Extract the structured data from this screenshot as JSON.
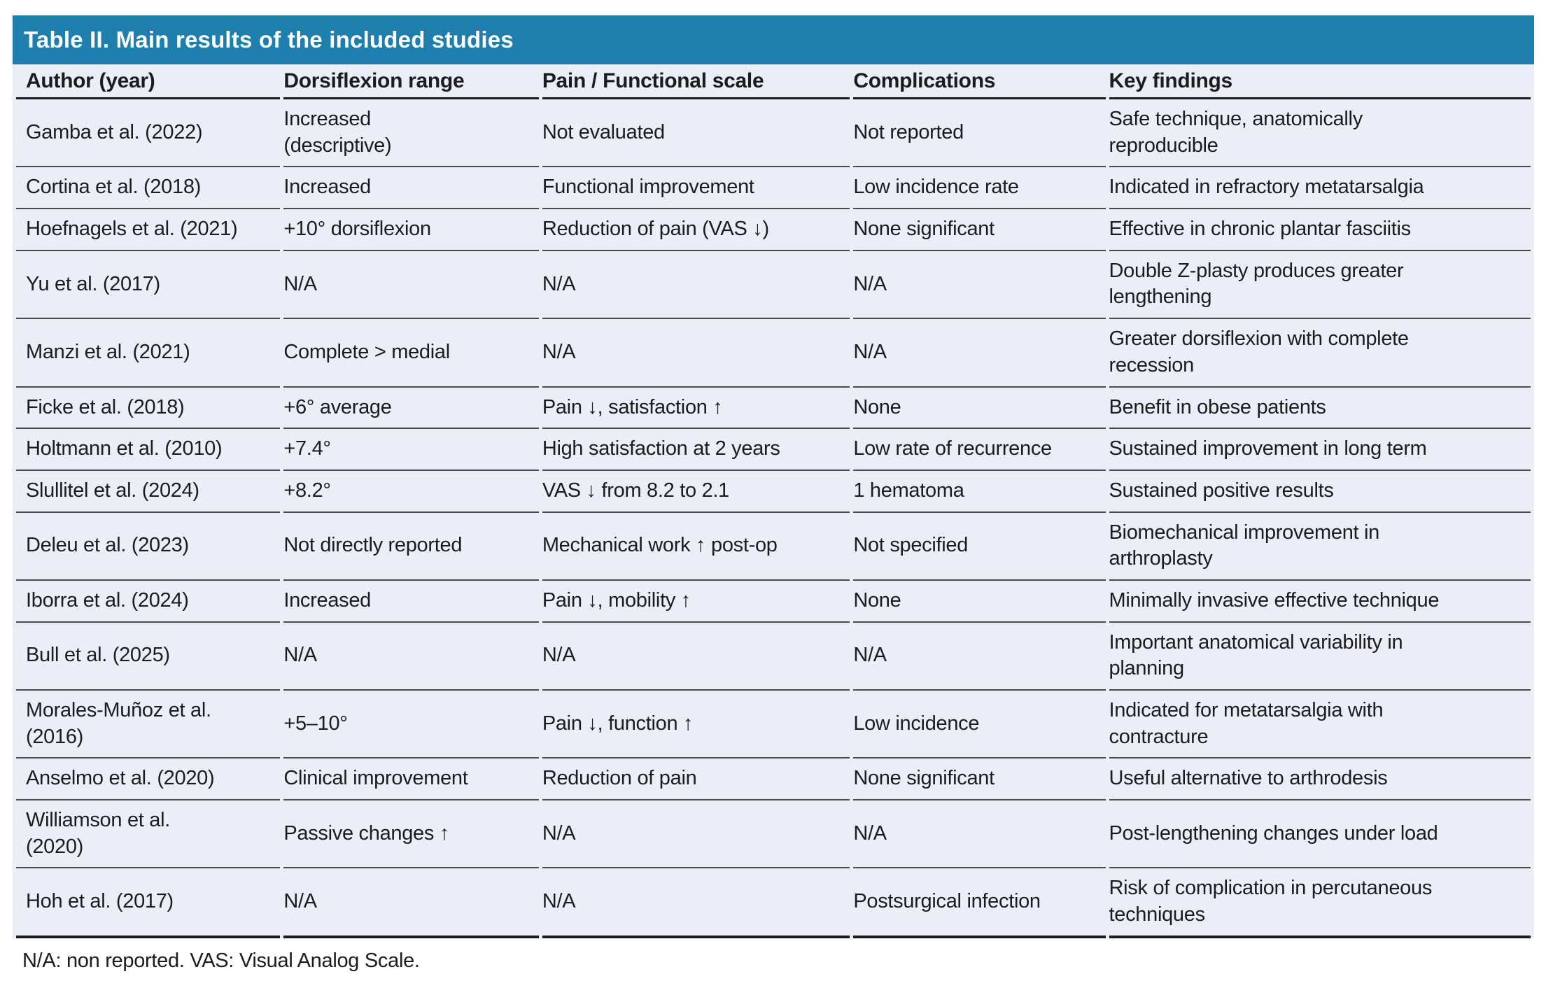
{
  "table": {
    "title": "Table II. Main results of the included studies",
    "columns": [
      "Author (year)",
      "Dorsiflexion range",
      "Pain / Functional scale",
      "Complications",
      "Key findings"
    ],
    "rows": [
      [
        "Gamba et al. (2022)",
        "Increased\n(descriptive)",
        "Not evaluated",
        "Not reported",
        "Safe technique, anatomically\nreproducible"
      ],
      [
        "Cortina et al. (2018)",
        "Increased",
        "Functional improvement",
        "Low incidence rate",
        "Indicated in refractory metatarsalgia"
      ],
      [
        "Hoefnagels et al. (2021)",
        "+10° dorsiflexion",
        "Reduction of pain (VAS ↓)",
        "None significant",
        "Effective in chronic plantar fasciitis"
      ],
      [
        "Yu et al. (2017)",
        "N/A",
        "N/A",
        "N/A",
        "Double Z-plasty produces greater\nlengthening"
      ],
      [
        "Manzi et al. (2021)",
        "Complete > medial",
        "N/A",
        "N/A",
        "Greater dorsiflexion with complete\nrecession"
      ],
      [
        "Ficke et al. (2018)",
        "+6° average",
        "Pain ↓, satisfaction ↑",
        "None",
        "Benefit in obese patients"
      ],
      [
        "Holtmann et al. (2010)",
        "+7.4°",
        "High satisfaction at 2 years",
        "Low rate of recurrence",
        "Sustained improvement in long term"
      ],
      [
        "Slullitel et al. (2024)",
        "+8.2°",
        "VAS ↓ from 8.2 to 2.1",
        "1 hematoma",
        "Sustained positive results"
      ],
      [
        "Deleu et al. (2023)",
        "Not directly reported",
        "Mechanical work ↑ post-op",
        "Not specified",
        "Biomechanical improvement in\narthroplasty"
      ],
      [
        "Iborra et al. (2024)",
        "Increased",
        "Pain ↓, mobility ↑",
        "None",
        "Minimally invasive effective technique"
      ],
      [
        "Bull et al. (2025)",
        "N/A",
        "N/A",
        "N/A",
        "Important anatomical variability in\nplanning"
      ],
      [
        "Morales-Muñoz et al.\n(2016)",
        "+5–10°",
        "Pain ↓, function ↑",
        "Low incidence",
        "Indicated for metatarsalgia with\ncontracture"
      ],
      [
        "Anselmo et al. (2020)",
        "Clinical improvement",
        "Reduction of pain",
        "None significant",
        "Useful alternative to arthrodesis"
      ],
      [
        "Williamson et al.\n(2020)",
        "Passive changes ↑",
        "N/A",
        "N/A",
        "Post-lengthening changes under load"
      ],
      [
        "Hoh et al. (2017)",
        "N/A",
        "N/A",
        "Postsurgical infection",
        "Risk of complication in percutaneous\ntechniques"
      ]
    ],
    "footnote": "N/A: non reported. VAS: Visual Analog Scale.",
    "colors": {
      "title_bar": "#1e7ead",
      "table_background": "#ebeef7",
      "rule_dark": "#1a1a1a",
      "rule_row": "#4a4a4a",
      "text": "#1c1c1c"
    }
  }
}
